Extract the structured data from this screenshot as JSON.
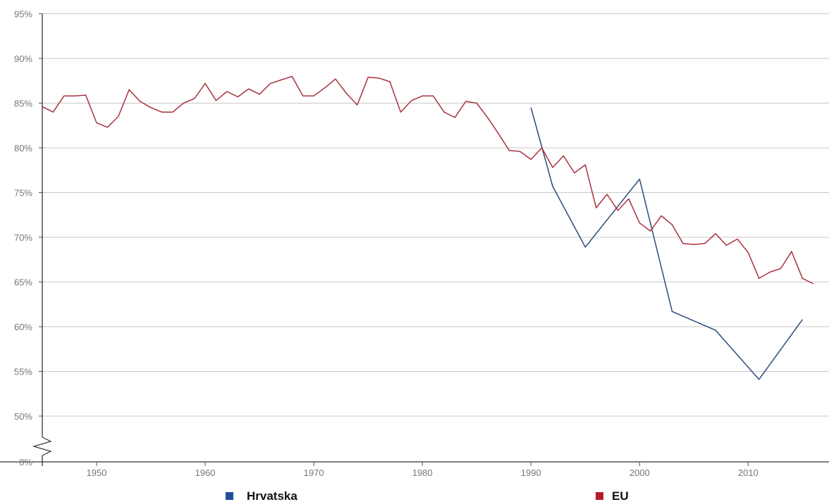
{
  "chart_data": {
    "type": "line",
    "title": "",
    "xlabel": "",
    "ylabel": "",
    "xlim": [
      1944,
      2016
    ],
    "ylim": [
      0,
      95
    ],
    "axis_break": "between 0% and 50%",
    "grid": "horizontal",
    "legend_position": "bottom",
    "y_ticks": [
      {
        "value": 95,
        "label": "95%"
      },
      {
        "value": 90,
        "label": "90%"
      },
      {
        "value": 85,
        "label": "85%"
      },
      {
        "value": 80,
        "label": "80%"
      },
      {
        "value": 75,
        "label": "75%"
      },
      {
        "value": 70,
        "label": "70%"
      },
      {
        "value": 65,
        "label": "65%"
      },
      {
        "value": 60,
        "label": "60%"
      },
      {
        "value": 55,
        "label": "55%"
      },
      {
        "value": 50,
        "label": "50%"
      },
      {
        "value": 0,
        "label": "0%"
      }
    ],
    "x_ticks": [
      {
        "value": 1950,
        "label": "1950"
      },
      {
        "value": 1960,
        "label": "1960"
      },
      {
        "value": 1970,
        "label": "1970"
      },
      {
        "value": 1980,
        "label": "1980"
      },
      {
        "value": 1990,
        "label": "1990"
      },
      {
        "value": 2000,
        "label": "2000"
      },
      {
        "value": 2010,
        "label": "2010"
      }
    ],
    "series": [
      {
        "name": "Hrvatska",
        "color": "#2c4b7a",
        "legend_color": "#1f4e96",
        "x": [
          1990,
          1992,
          1995,
          2000,
          2003,
          2007,
          2011,
          2015
        ],
        "y": [
          84.5,
          75.7,
          68.9,
          76.5,
          61.7,
          59.6,
          54.1,
          60.8
        ]
      },
      {
        "name": "EU",
        "color": "#a8323e",
        "legend_color": "#b11d2d",
        "x": [
          1945,
          1946,
          1947,
          1948,
          1949,
          1950,
          1951,
          1952,
          1953,
          1954,
          1955,
          1956,
          1957,
          1958,
          1959,
          1960,
          1961,
          1962,
          1963,
          1964,
          1965,
          1966,
          1967,
          1968,
          1969,
          1970,
          1971,
          1972,
          1973,
          1974,
          1975,
          1976,
          1977,
          1978,
          1979,
          1980,
          1981,
          1982,
          1983,
          1984,
          1985,
          1986,
          1987,
          1988,
          1989,
          1990,
          1991,
          1992,
          1993,
          1994,
          1995,
          1996,
          1997,
          1998,
          1999,
          2000,
          2001,
          2002,
          2003,
          2004,
          2005,
          2006,
          2007,
          2008,
          2009,
          2010,
          2011,
          2012,
          2013,
          2014,
          2015,
          2016
        ],
        "y": [
          84.6,
          84.0,
          85.8,
          85.8,
          85.9,
          82.8,
          82.3,
          83.5,
          86.5,
          85.2,
          84.5,
          84.0,
          84.0,
          85.0,
          85.5,
          87.2,
          85.3,
          86.3,
          85.7,
          86.6,
          86.0,
          87.2,
          87.6,
          88.0,
          85.8,
          85.8,
          86.7,
          87.7,
          86.1,
          84.8,
          87.9,
          87.8,
          87.4,
          84.0,
          85.3,
          85.8,
          85.8,
          84.0,
          83.4,
          85.2,
          85.0,
          83.4,
          81.6,
          79.7,
          79.6,
          78.7,
          80.0,
          77.8,
          79.1,
          77.2,
          78.1,
          73.3,
          74.8,
          73.0,
          74.3,
          71.6,
          70.7,
          72.4,
          71.4,
          69.3,
          69.2,
          69.3,
          70.4,
          69.1,
          69.8,
          68.3,
          65.4,
          66.1,
          66.5,
          68.4,
          65.4,
          64.8
        ]
      }
    ]
  }
}
